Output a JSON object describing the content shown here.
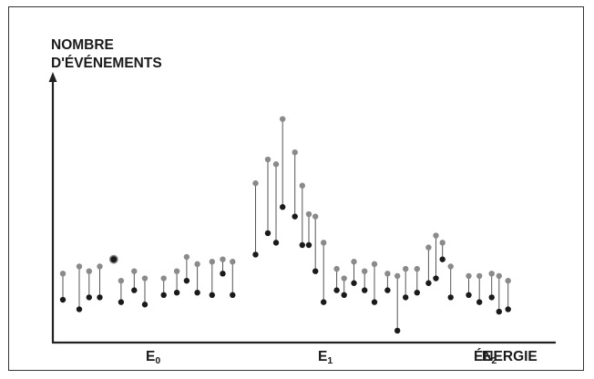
{
  "chart_data": {
    "type": "scatter",
    "title": "",
    "ylabel_line1": "NOMBRE",
    "ylabel_line2": "D'ÉVÉNEMENTS",
    "xlabel": "ÉNERGIE",
    "x_ticks": [
      {
        "main": "E",
        "sub": "0",
        "x": 12
      },
      {
        "main": "E",
        "sub": "1",
        "x": 33
      },
      {
        "main": "E",
        "sub": "2",
        "x": 53
      }
    ],
    "xlim": [
      0,
      60
    ],
    "ylim": [
      0,
      100
    ],
    "grid": false,
    "legend": "none",
    "colors": {
      "upper": "#8a8a8a",
      "lower": "#1a1a1a",
      "axis": "#222222",
      "stem": "#555555"
    },
    "outlier": {
      "x": 7.2,
      "y": 35
    },
    "pairs": [
      {
        "x": 1.0,
        "upper": 29,
        "lower": 18
      },
      {
        "x": 3.0,
        "upper": 32,
        "lower": 14
      },
      {
        "x": 4.2,
        "upper": 30,
        "lower": 19
      },
      {
        "x": 5.5,
        "upper": 32,
        "lower": 19
      },
      {
        "x": 8.1,
        "upper": 26,
        "lower": 17
      },
      {
        "x": 9.7,
        "upper": 30,
        "lower": 22
      },
      {
        "x": 11.0,
        "upper": 27,
        "lower": 16
      },
      {
        "x": 13.3,
        "upper": 27,
        "lower": 20
      },
      {
        "x": 14.9,
        "upper": 30,
        "lower": 21
      },
      {
        "x": 16.1,
        "upper": 36,
        "lower": 26
      },
      {
        "x": 17.4,
        "upper": 33,
        "lower": 21
      },
      {
        "x": 19.2,
        "upper": 34,
        "lower": 20
      },
      {
        "x": 20.5,
        "upper": 35,
        "lower": 29
      },
      {
        "x": 21.7,
        "upper": 34,
        "lower": 20
      },
      {
        "x": 24.5,
        "upper": 67,
        "lower": 37
      },
      {
        "x": 26.0,
        "upper": 77,
        "lower": 46
      },
      {
        "x": 27.0,
        "upper": 75,
        "lower": 42
      },
      {
        "x": 27.8,
        "upper": 94,
        "lower": 57
      },
      {
        "x": 29.3,
        "upper": 80,
        "lower": 53
      },
      {
        "x": 30.2,
        "upper": 66,
        "lower": 41
      },
      {
        "x": 31.0,
        "upper": 54,
        "lower": 41
      },
      {
        "x": 31.8,
        "upper": 53,
        "lower": 30
      },
      {
        "x": 32.8,
        "upper": 42,
        "lower": 17
      },
      {
        "x": 34.4,
        "upper": 31,
        "lower": 22
      },
      {
        "x": 35.3,
        "upper": 27,
        "lower": 20
      },
      {
        "x": 36.5,
        "upper": 34,
        "lower": 25
      },
      {
        "x": 37.8,
        "upper": 30,
        "lower": 22
      },
      {
        "x": 39.0,
        "upper": 33,
        "lower": 17
      },
      {
        "x": 40.6,
        "upper": 29,
        "lower": 22
      },
      {
        "x": 41.8,
        "upper": 28,
        "lower": 5
      },
      {
        "x": 42.8,
        "upper": 31,
        "lower": 19
      },
      {
        "x": 44.2,
        "upper": 31,
        "lower": 21
      },
      {
        "x": 45.6,
        "upper": 40,
        "lower": 25
      },
      {
        "x": 46.5,
        "upper": 45,
        "lower": 27
      },
      {
        "x": 47.3,
        "upper": 42,
        "lower": 35
      },
      {
        "x": 48.3,
        "upper": 32,
        "lower": 19
      },
      {
        "x": 50.5,
        "upper": 28,
        "lower": 20
      },
      {
        "x": 51.8,
        "upper": 28,
        "lower": 17
      },
      {
        "x": 53.3,
        "upper": 29,
        "lower": 19
      },
      {
        "x": 54.2,
        "upper": 28,
        "lower": 13
      },
      {
        "x": 55.3,
        "upper": 26,
        "lower": 14
      }
    ]
  }
}
